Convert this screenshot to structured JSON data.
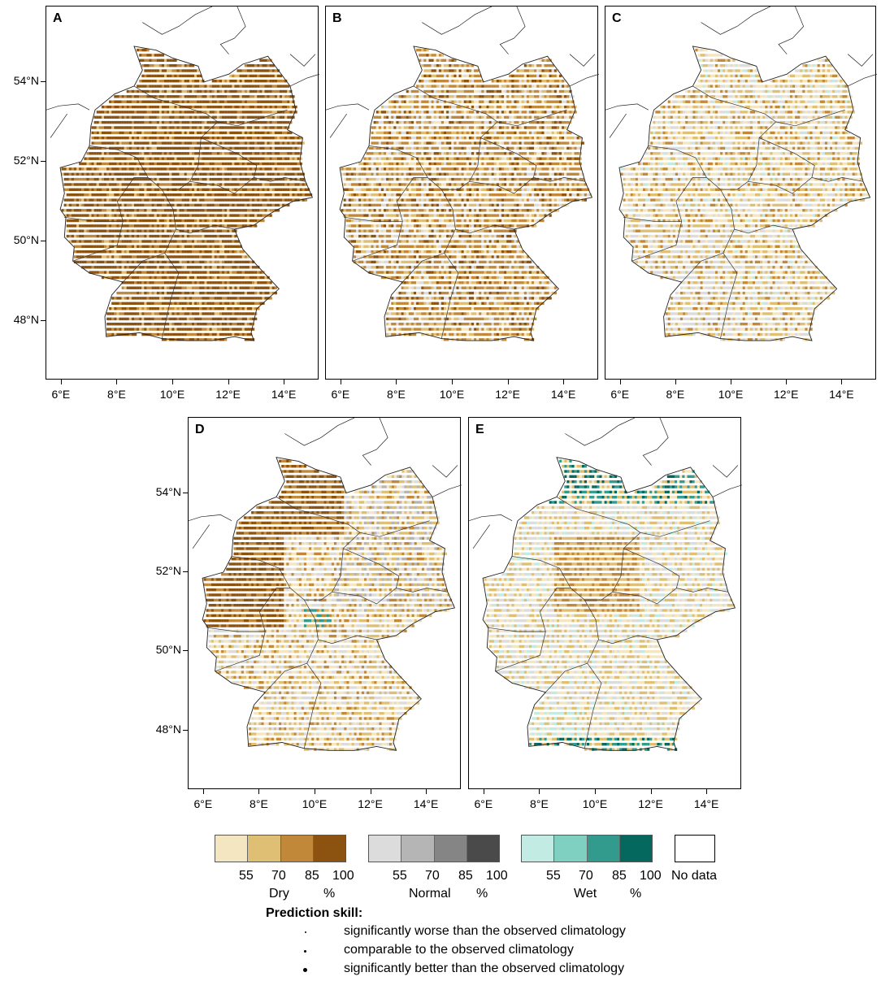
{
  "panels": [
    {
      "label": "A",
      "x_ticks": [
        "6°E",
        "8°E",
        "10°E",
        "12°E",
        "14°E"
      ],
      "y_ticks": [
        "54°N",
        "52°N",
        "50°N",
        "48°N"
      ],
      "dominant": "dry"
    },
    {
      "label": "B",
      "x_ticks": [
        "6°E",
        "8°E",
        "10°E",
        "12°E",
        "14°E"
      ],
      "y_ticks": [],
      "dominant": "dry-mixed"
    },
    {
      "label": "C",
      "x_ticks": [
        "6°E",
        "8°E",
        "10°E",
        "12°E",
        "14°E"
      ],
      "y_ticks": [],
      "dominant": "mixed"
    },
    {
      "label": "D",
      "x_ticks": [
        "6°E",
        "8°E",
        "10°E",
        "12°E",
        "14°E"
      ],
      "y_ticks": [
        "54°N",
        "52°N",
        "50°N",
        "48°N"
      ],
      "dominant": "dry-west"
    },
    {
      "label": "E",
      "x_ticks": [
        "6°E",
        "8°E",
        "10°E",
        "12°E",
        "14°E"
      ],
      "y_ticks": [],
      "dominant": "wet-mixed"
    }
  ],
  "legend": {
    "dry": {
      "name": "Dry",
      "unit": "%",
      "ticks": [
        "55",
        "70",
        "85",
        "100"
      ],
      "colors": [
        "#f5e6c2",
        "#dfbf73",
        "#c2883a",
        "#8c5310"
      ]
    },
    "normal": {
      "name": "Normal",
      "unit": "%",
      "ticks": [
        "55",
        "70",
        "85",
        "100"
      ],
      "colors": [
        "#dcdcdc",
        "#b5b5b5",
        "#858585",
        "#4a4a4a"
      ]
    },
    "wet": {
      "name": "Wet",
      "unit": "%",
      "ticks": [
        "55",
        "70",
        "85",
        "100"
      ],
      "colors": [
        "#c2ebe3",
        "#80d0c2",
        "#339a8e",
        "#05685f"
      ]
    },
    "nodata": "No data"
  },
  "skill": {
    "title": "Prediction skill:",
    "rows": [
      "significantly worse than the observed climatology",
      "comparable to the observed climatology",
      "significantly better than the observed climatology"
    ]
  }
}
